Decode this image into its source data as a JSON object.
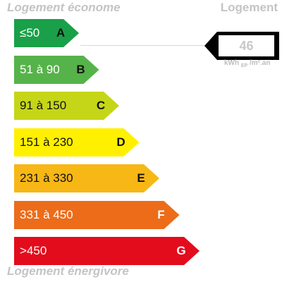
{
  "captions": {
    "top_left": "Logement économe",
    "top_right": "Logement",
    "bottom_left": "Logement énergivore"
  },
  "bands": [
    {
      "range": "≤50",
      "letter": "A",
      "color": "#1aa048",
      "text_color": "#ffffff",
      "letter_color": "#111111"
    },
    {
      "range": "51 à 90",
      "letter": "B",
      "color": "#56b34a",
      "text_color": "#ffffff",
      "letter_color": "#111111"
    },
    {
      "range": "91 à 150",
      "letter": "C",
      "color": "#c5d618",
      "text_color": "#111111",
      "letter_color": "#111111"
    },
    {
      "range": "151 à 230",
      "letter": "D",
      "color": "#fff000",
      "text_color": "#111111",
      "letter_color": "#111111"
    },
    {
      "range": "231 à 330",
      "letter": "E",
      "color": "#f7b715",
      "text_color": "#111111",
      "letter_color": "#111111"
    },
    {
      "range": "331 à 450",
      "letter": "F",
      "color": "#ec6c1a",
      "text_color": "#ffffff",
      "letter_color": "#ffffff"
    },
    {
      "range": ">450",
      "letter": "G",
      "color": "#e30c1c",
      "text_color": "#ffffff",
      "letter_color": "#ffffff"
    }
  ],
  "indicator": {
    "value": "46",
    "unit_main": "kWh",
    "unit_sub": "EP",
    "unit_rest": "/m².an",
    "class": "A"
  }
}
